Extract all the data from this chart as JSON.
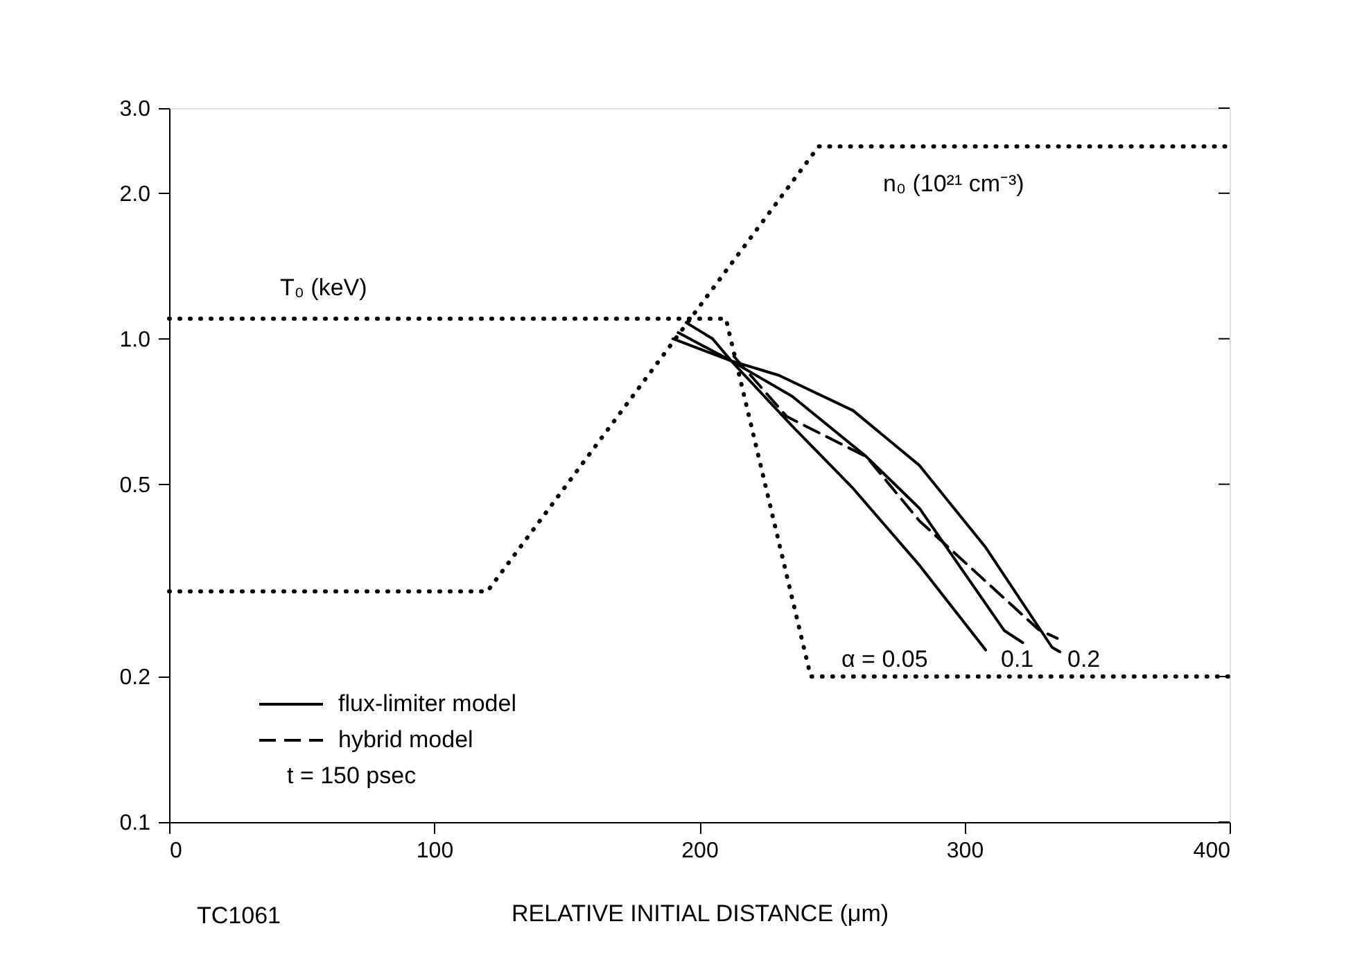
{
  "chart_data": {
    "type": "line",
    "xlabel": "RELATIVE INITIAL DISTANCE (μm)",
    "xlim": [
      0,
      400
    ],
    "xticks": [
      0,
      100,
      200,
      300,
      400
    ],
    "ylim": [
      0.1,
      3.0
    ],
    "yticks": [
      {
        "value": 0.1,
        "label": "0.1"
      },
      {
        "value": 0.2,
        "label": "0.2"
      },
      {
        "value": 0.5,
        "label": "0.5"
      },
      {
        "value": 1,
        "label": "1.0"
      },
      {
        "value": 2,
        "label": "2.0"
      },
      {
        "value": 3,
        "label": "3.0"
      }
    ],
    "log": true,
    "grid": false,
    "legend": "bottom left",
    "series": [
      {
        "color": "#000000",
        "line_style": "dotted",
        "x": [
          0,
          120,
          245,
          400
        ],
        "values": [
          0.3,
          0.3,
          2.5,
          2.5
        ]
      },
      {
        "color": "#000000",
        "line_style": "dotted",
        "x": [
          0,
          210,
          242,
          400
        ],
        "values": [
          1.1,
          1.1,
          0.2,
          0.2
        ]
      },
      {
        "name": "flux-limiter model",
        "color": "#000000",
        "line_style": "solid",
        "x": [
          195,
          205,
          212,
          235,
          258,
          283,
          308
        ],
        "values": [
          1.08,
          1.0,
          0.9,
          0.66,
          0.49,
          0.34,
          0.227
        ]
      },
      {
        "color": "#000000",
        "line_style": "solid",
        "x": [
          192,
          212,
          235,
          263,
          283,
          315,
          322
        ],
        "values": [
          1.03,
          0.9,
          0.76,
          0.57,
          0.446,
          0.249,
          0.235
        ]
      },
      {
        "color": "#000000",
        "line_style": "solid",
        "x": [
          190,
          212,
          230,
          258,
          283,
          308,
          333,
          336
        ],
        "values": [
          1.0,
          0.9,
          0.84,
          0.71,
          0.547,
          0.37,
          0.23,
          0.225
        ]
      },
      {
        "name": "hybrid model",
        "color": "#000000",
        "line_style": "dashed",
        "x": [
          213,
          233,
          263,
          283,
          328,
          335
        ],
        "values": [
          0.92,
          0.69,
          0.57,
          0.42,
          0.25,
          0.24
        ]
      }
    ],
    "annotations": [
      "T₀ (keV)",
      "n₀ (10²¹ cm⁻³)",
      "α = 0.05",
      "0.1",
      "0.2",
      "t = 150 psec",
      "TC1061"
    ]
  }
}
